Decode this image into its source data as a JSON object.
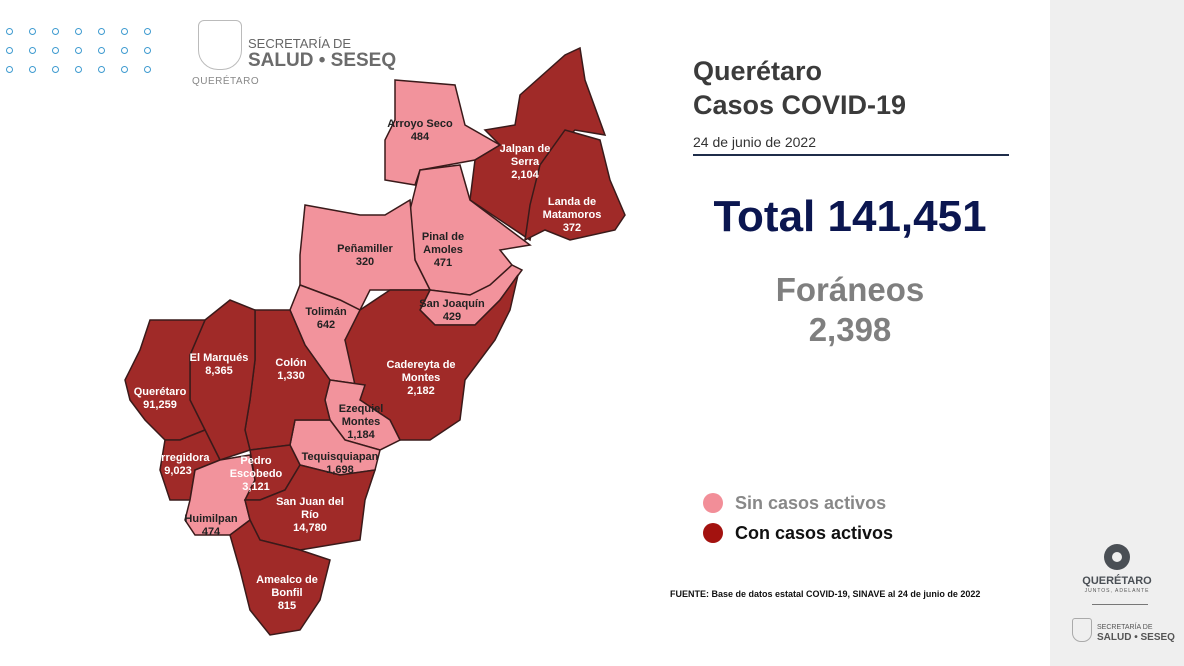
{
  "header": {
    "secretaria_line1": "SECRETARÍA DE",
    "secretaria_line2": "SALUD • SESEQ",
    "state_small": "QUERÉTARO"
  },
  "title": {
    "line1": "Querétaro",
    "line2": "Casos COVID-19"
  },
  "date": "24 de junio de 2022",
  "total": "Total 141,451",
  "foraneos": {
    "label": "Foráneos",
    "value": "2,398"
  },
  "legend": [
    {
      "label": "Sin casos activos",
      "color": "#f28e98"
    },
    {
      "label": "Con casos activos",
      "color": "#a3120f"
    }
  ],
  "colors": {
    "active": "#a02a28",
    "inactive": "#f2939c"
  },
  "municipalities": [
    {
      "name": "Arroyo Seco",
      "cases": "484",
      "active": false
    },
    {
      "name": "Jalpan de Serra",
      "cases": "2,104",
      "active": true
    },
    {
      "name": "Landa de Matamoros",
      "cases": "372",
      "active": true
    },
    {
      "name": "Pinal de Amoles",
      "cases": "471",
      "active": false
    },
    {
      "name": "Peñamiller",
      "cases": "320",
      "active": false
    },
    {
      "name": "Tolimán",
      "cases": "642",
      "active": false
    },
    {
      "name": "San Joaquín",
      "cases": "429",
      "active": false
    },
    {
      "name": "Cadereyta de Montes",
      "cases": "2,182",
      "active": true
    },
    {
      "name": "Ezequiel Montes",
      "cases": "1,184",
      "active": false
    },
    {
      "name": "Tequisquiapan",
      "cases": "1,698",
      "active": false
    },
    {
      "name": "Colón",
      "cases": "1,330",
      "active": true
    },
    {
      "name": "El Marqués",
      "cases": "8,365",
      "active": true
    },
    {
      "name": "Querétaro",
      "cases": "91,259",
      "active": true
    },
    {
      "name": "Corregidora",
      "cases": "9,023",
      "active": true
    },
    {
      "name": "Huimilpan",
      "cases": "474",
      "active": false
    },
    {
      "name": "Pedro Escobedo",
      "cases": "3,121",
      "active": true
    },
    {
      "name": "San Juan del Río",
      "cases": "14,780",
      "active": true
    },
    {
      "name": "Amealco de Bonfil",
      "cases": "815",
      "active": true
    }
  ],
  "source": "FUENTE: Base de datos estatal  COVID-19,  SINAVE  al 24 de junio de 2022",
  "sidebar": {
    "brand": "QUERÉTARO",
    "tagline": "JUNTOS, ADELANTE",
    "secretaria_line1": "SECRETARÍA DE",
    "secretaria_line2": "SALUD • SESEQ"
  }
}
